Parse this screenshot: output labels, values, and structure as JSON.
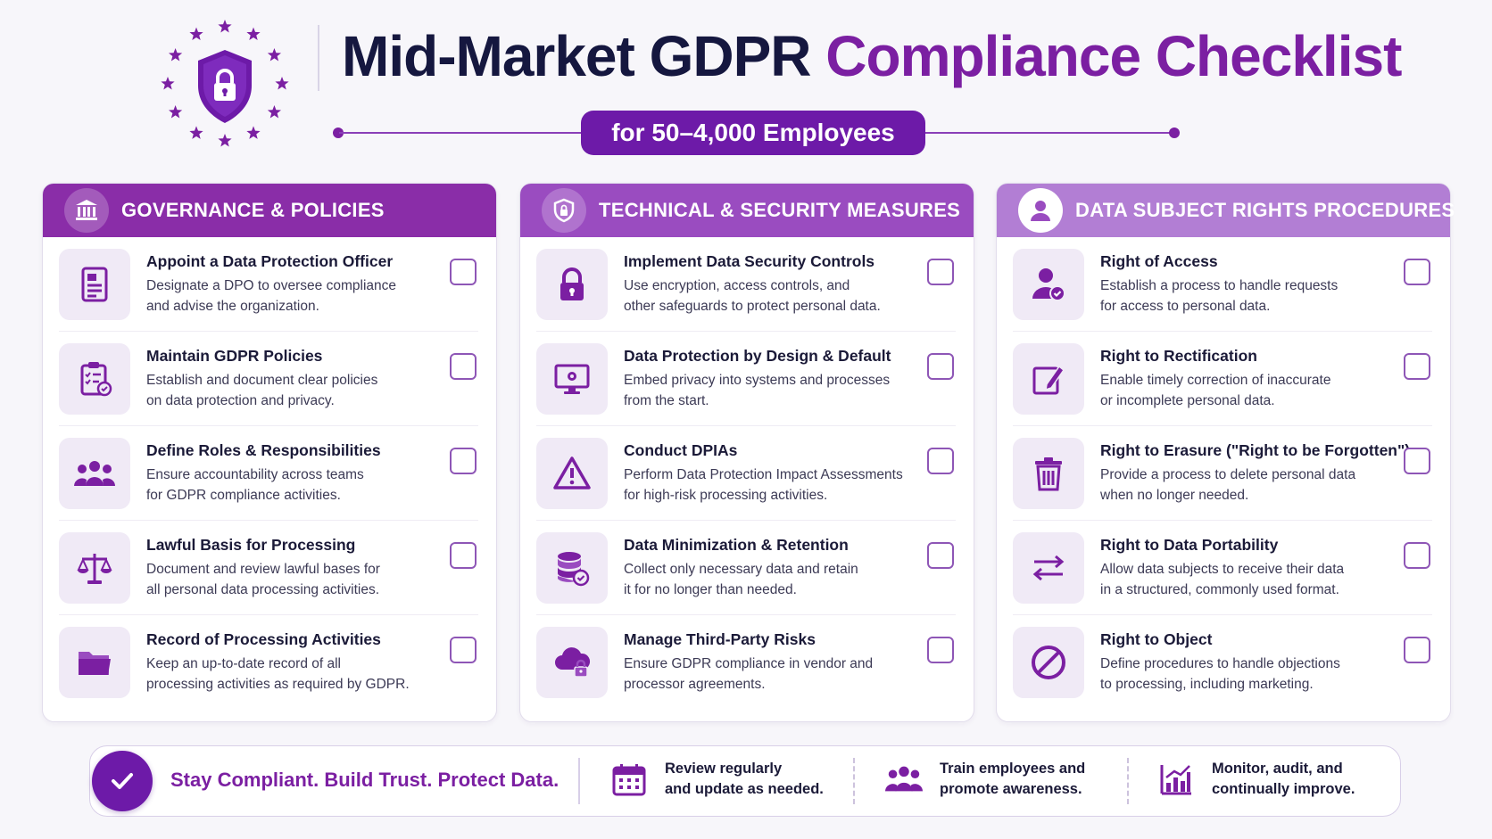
{
  "header": {
    "title_part1": "Mid-Market GDPR",
    "title_part2": "Compliance Checklist",
    "subtitle": "for 50–4,000 Employees"
  },
  "colors": {
    "brand_purple": "#7b1fa2",
    "navy": "#15173f",
    "header_governance": "#8a2da8",
    "header_technical": "#9a4cc0",
    "header_rights": "#b27ed4"
  },
  "columns": [
    {
      "title": "GOVERNANCE & POLICIES",
      "icon": "bank-icon",
      "items": [
        {
          "title": "Appoint a Data Protection Officer",
          "desc1": "Designate a DPO to oversee compliance",
          "desc2": "and advise the organization.",
          "icon": "document-icon"
        },
        {
          "title": "Maintain GDPR Policies",
          "desc1": "Establish and document clear policies",
          "desc2": "on data protection and privacy.",
          "icon": "clipboard-checklist-icon"
        },
        {
          "title": "Define Roles & Responsibilities",
          "desc1": "Ensure accountability across teams",
          "desc2": "for GDPR compliance activities.",
          "icon": "team-icon"
        },
        {
          "title": "Lawful Basis for Processing",
          "desc1": "Document and review lawful bases for",
          "desc2": "all personal data processing activities.",
          "icon": "scales-icon"
        },
        {
          "title": "Record of Processing Activities",
          "desc1": "Keep an up-to-date record of all",
          "desc2": "processing activities as required by GDPR.",
          "icon": "folder-icon"
        }
      ]
    },
    {
      "title": "TECHNICAL & SECURITY MEASURES",
      "icon": "shield-lock-icon",
      "items": [
        {
          "title": "Implement Data Security Controls",
          "desc1": "Use encryption, access controls, and",
          "desc2": "other safeguards to protect personal data.",
          "icon": "padlock-icon"
        },
        {
          "title": "Data Protection by Design & Default",
          "desc1": "Embed privacy into systems and processes",
          "desc2": "from the start.",
          "icon": "monitor-gear-icon"
        },
        {
          "title": "Conduct DPIAs",
          "desc1": "Perform Data Protection Impact Assessments",
          "desc2": "for high-risk processing activities.",
          "icon": "warning-icon"
        },
        {
          "title": "Data Minimization & Retention",
          "desc1": "Collect only necessary data and retain",
          "desc2": "it for no longer than needed.",
          "icon": "database-check-icon"
        },
        {
          "title": "Manage Third-Party Risks",
          "desc1": "Ensure GDPR compliance in vendor and",
          "desc2": "processor agreements.",
          "icon": "cloud-lock-icon"
        }
      ]
    },
    {
      "title": "DATA SUBJECT RIGHTS PROCEDURES",
      "icon": "user-icon",
      "items": [
        {
          "title": "Right of Access",
          "desc1": "Establish a process to handle requests",
          "desc2": "for access to personal data.",
          "icon": "user-check-icon"
        },
        {
          "title": "Right to Rectification",
          "desc1": "Enable timely correction of inaccurate",
          "desc2": "or incomplete personal data.",
          "icon": "edit-icon"
        },
        {
          "title": "Right to Erasure (\"Right to be Forgotten\")",
          "desc1": "Provide a process to delete personal data",
          "desc2": "when no longer needed.",
          "icon": "trash-icon"
        },
        {
          "title": "Right to Data Portability",
          "desc1": "Allow data subjects to receive their data",
          "desc2": "in a structured, commonly used format.",
          "icon": "transfer-arrows-icon"
        },
        {
          "title": "Right to Object",
          "desc1": "Define procedures to handle objections",
          "desc2": "to processing, including marketing.",
          "icon": "prohibit-icon"
        }
      ]
    }
  ],
  "footer": {
    "slogan": "Stay Compliant. Build Trust. Protect Data.",
    "items": [
      {
        "line1": "Review regularly",
        "line2": "and update as needed.",
        "icon": "calendar-icon"
      },
      {
        "line1": "Train employees and",
        "line2": "promote awareness.",
        "icon": "team-icon"
      },
      {
        "line1": "Monitor, audit, and",
        "line2": "continually improve.",
        "icon": "bar-chart-icon"
      }
    ]
  }
}
